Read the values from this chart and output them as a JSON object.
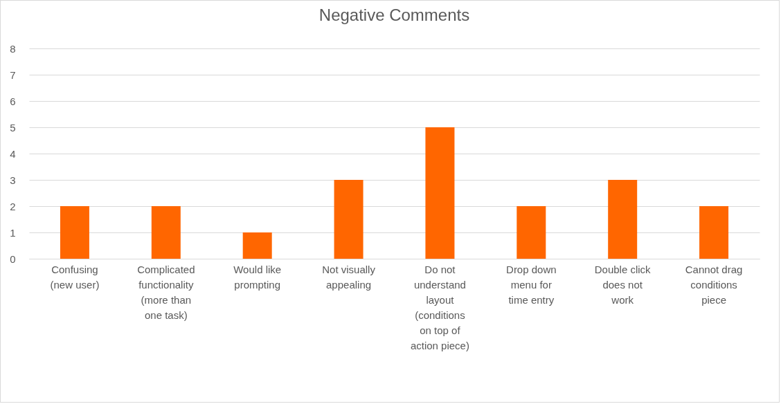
{
  "chart_data": {
    "type": "bar",
    "title": "Negative Comments",
    "categories": [
      "Confusing\n(new user)",
      "Complicated\nfunctionality\n(more than\none task)",
      "Would like\nprompting",
      "Not visually\nappealing",
      "Do not\nunderstand\nlayout\n(conditions\non top of\naction piece)",
      "Drop down\nmenu for\ntime entry",
      "Double click\ndoes not\nwork",
      "Cannot drag\nconditions\npiece"
    ],
    "values": [
      2,
      2,
      1,
      3,
      5,
      2,
      3,
      2
    ],
    "color": "#ff6600",
    "ylim": [
      0,
      8
    ],
    "yticks": [
      0,
      1,
      2,
      3,
      4,
      5,
      6,
      7,
      8
    ],
    "grid": "y"
  }
}
